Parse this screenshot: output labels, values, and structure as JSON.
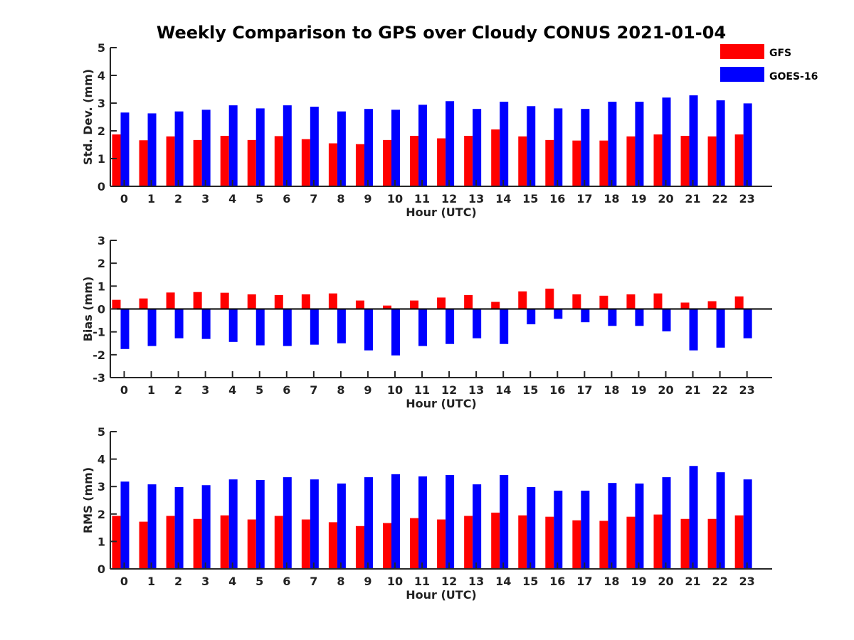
{
  "figure": {
    "title": "Weekly Comparison to GPS over Cloudy CONUS 2021-01-04"
  },
  "legend": {
    "placement": "top-right",
    "items": [
      {
        "label": "GFS",
        "color": "#ff0000"
      },
      {
        "label": "GOES-16",
        "color": "#0000ff"
      }
    ]
  },
  "chart_data": [
    {
      "type": "bar",
      "panel": "std-dev",
      "xlabel": "Hour (UTC)",
      "ylabel": "Std. Dev. (mm)",
      "ylim": [
        0,
        5
      ],
      "yticks": [
        0,
        1,
        2,
        3,
        4,
        5
      ],
      "categories": [
        "0",
        "1",
        "2",
        "3",
        "4",
        "5",
        "6",
        "7",
        "8",
        "9",
        "10",
        "11",
        "12",
        "13",
        "14",
        "15",
        "16",
        "17",
        "18",
        "19",
        "20",
        "21",
        "22",
        "23"
      ],
      "series": [
        {
          "name": "GFS",
          "color": "#ff0000",
          "values": [
            1.87,
            1.66,
            1.8,
            1.67,
            1.82,
            1.67,
            1.81,
            1.7,
            1.55,
            1.52,
            1.67,
            1.82,
            1.73,
            1.82,
            2.05,
            1.8,
            1.67,
            1.65,
            1.65,
            1.8,
            1.87,
            1.82,
            1.8,
            1.87
          ]
        },
        {
          "name": "GOES-16",
          "color": "#0000ff",
          "values": [
            2.66,
            2.63,
            2.7,
            2.76,
            2.92,
            2.81,
            2.92,
            2.87,
            2.7,
            2.79,
            2.76,
            2.94,
            3.07,
            2.79,
            3.05,
            2.89,
            2.81,
            2.79,
            3.05,
            3.05,
            3.2,
            3.28,
            3.1,
            2.99
          ]
        }
      ]
    },
    {
      "type": "bar",
      "panel": "bias",
      "xlabel": "Hour (UTC)",
      "ylabel": "Bias (mm)",
      "ylim": [
        -3,
        3
      ],
      "yticks": [
        -3,
        -2,
        -1,
        0,
        1,
        2,
        3
      ],
      "categories": [
        "0",
        "1",
        "2",
        "3",
        "4",
        "5",
        "6",
        "7",
        "8",
        "9",
        "10",
        "11",
        "12",
        "13",
        "14",
        "15",
        "16",
        "17",
        "18",
        "19",
        "20",
        "21",
        "22",
        "23"
      ],
      "series": [
        {
          "name": "GFS",
          "color": "#ff0000",
          "values": [
            0.4,
            0.46,
            0.72,
            0.74,
            0.71,
            0.64,
            0.61,
            0.64,
            0.68,
            0.37,
            0.15,
            0.37,
            0.5,
            0.61,
            0.31,
            0.77,
            0.89,
            0.64,
            0.58,
            0.64,
            0.68,
            0.28,
            0.34,
            0.55
          ]
        },
        {
          "name": "GOES-16",
          "color": "#0000ff",
          "values": [
            -1.75,
            -1.62,
            -1.28,
            -1.31,
            -1.44,
            -1.59,
            -1.62,
            -1.56,
            -1.5,
            -1.81,
            -2.03,
            -1.62,
            -1.53,
            -1.28,
            -1.53,
            -0.67,
            -0.43,
            -0.58,
            -0.74,
            -0.74,
            -0.98,
            -1.81,
            -1.69,
            -1.28
          ]
        }
      ]
    },
    {
      "type": "bar",
      "panel": "rms",
      "xlabel": "Hour (UTC)",
      "ylabel": "RMS (mm)",
      "ylim": [
        0,
        5
      ],
      "yticks": [
        0,
        1,
        2,
        3,
        4,
        5
      ],
      "categories": [
        "0",
        "1",
        "2",
        "3",
        "4",
        "5",
        "6",
        "7",
        "8",
        "9",
        "10",
        "11",
        "12",
        "13",
        "14",
        "15",
        "16",
        "17",
        "18",
        "19",
        "20",
        "21",
        "22",
        "23"
      ],
      "series": [
        {
          "name": "GFS",
          "color": "#ff0000",
          "values": [
            1.93,
            1.72,
            1.93,
            1.82,
            1.95,
            1.8,
            1.93,
            1.8,
            1.7,
            1.56,
            1.67,
            1.85,
            1.8,
            1.93,
            2.05,
            1.95,
            1.9,
            1.77,
            1.75,
            1.9,
            1.98,
            1.82,
            1.82,
            1.95
          ]
        },
        {
          "name": "GOES-16",
          "color": "#0000ff",
          "values": [
            3.18,
            3.08,
            2.98,
            3.05,
            3.26,
            3.24,
            3.34,
            3.26,
            3.11,
            3.34,
            3.45,
            3.37,
            3.42,
            3.08,
            3.42,
            2.98,
            2.85,
            2.85,
            3.13,
            3.11,
            3.34,
            3.75,
            3.52,
            3.26
          ]
        }
      ]
    }
  ]
}
